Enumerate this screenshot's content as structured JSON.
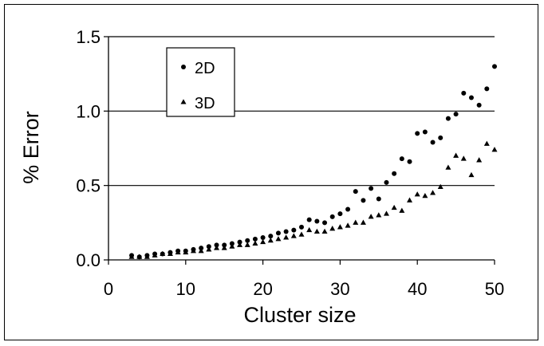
{
  "chart_data": {
    "type": "scatter",
    "title": "",
    "xlabel": "Cluster size",
    "ylabel": "% Error",
    "xlim": [
      0,
      50
    ],
    "ylim": [
      0,
      1.5
    ],
    "x_ticks": [
      "0",
      "10",
      "20",
      "30",
      "40",
      "50"
    ],
    "y_ticks": [
      "0.0",
      "0.5",
      "1.0",
      "1.5"
    ],
    "grid": "horizontal",
    "legend_position": "top-left",
    "series": [
      {
        "name": "2D",
        "marker": "circle",
        "color": "#000000",
        "points": [
          [
            3,
            0.03
          ],
          [
            4,
            0.02
          ],
          [
            5,
            0.03
          ],
          [
            6,
            0.04
          ],
          [
            7,
            0.04
          ],
          [
            8,
            0.05
          ],
          [
            9,
            0.06
          ],
          [
            10,
            0.06
          ],
          [
            11,
            0.07
          ],
          [
            12,
            0.08
          ],
          [
            13,
            0.09
          ],
          [
            14,
            0.1
          ],
          [
            15,
            0.1
          ],
          [
            16,
            0.11
          ],
          [
            17,
            0.12
          ],
          [
            18,
            0.13
          ],
          [
            19,
            0.14
          ],
          [
            20,
            0.15
          ],
          [
            21,
            0.16
          ],
          [
            22,
            0.18
          ],
          [
            23,
            0.19
          ],
          [
            24,
            0.2
          ],
          [
            25,
            0.22
          ],
          [
            26,
            0.27
          ],
          [
            27,
            0.26
          ],
          [
            28,
            0.25
          ],
          [
            29,
            0.29
          ],
          [
            30,
            0.31
          ],
          [
            31,
            0.34
          ],
          [
            32,
            0.46
          ],
          [
            33,
            0.4
          ],
          [
            34,
            0.48
          ],
          [
            35,
            0.41
          ],
          [
            36,
            0.52
          ],
          [
            37,
            0.58
          ],
          [
            38,
            0.68
          ],
          [
            39,
            0.66
          ],
          [
            40,
            0.85
          ],
          [
            41,
            0.86
          ],
          [
            42,
            0.79
          ],
          [
            43,
            0.82
          ],
          [
            44,
            0.95
          ],
          [
            45,
            0.98
          ],
          [
            46,
            1.12
          ],
          [
            47,
            1.09
          ],
          [
            48,
            1.04
          ],
          [
            49,
            1.15
          ],
          [
            50,
            1.3
          ]
        ]
      },
      {
        "name": "3D",
        "marker": "triangle",
        "color": "#000000",
        "points": [
          [
            3,
            0.02
          ],
          [
            4,
            0.02
          ],
          [
            5,
            0.02
          ],
          [
            6,
            0.03
          ],
          [
            7,
            0.04
          ],
          [
            8,
            0.04
          ],
          [
            9,
            0.05
          ],
          [
            10,
            0.05
          ],
          [
            11,
            0.06
          ],
          [
            12,
            0.06
          ],
          [
            13,
            0.07
          ],
          [
            14,
            0.08
          ],
          [
            15,
            0.08
          ],
          [
            16,
            0.09
          ],
          [
            17,
            0.1
          ],
          [
            18,
            0.1
          ],
          [
            19,
            0.11
          ],
          [
            20,
            0.12
          ],
          [
            21,
            0.13
          ],
          [
            22,
            0.14
          ],
          [
            23,
            0.15
          ],
          [
            24,
            0.16
          ],
          [
            25,
            0.17
          ],
          [
            26,
            0.2
          ],
          [
            27,
            0.19
          ],
          [
            28,
            0.19
          ],
          [
            29,
            0.21
          ],
          [
            30,
            0.22
          ],
          [
            31,
            0.23
          ],
          [
            32,
            0.25
          ],
          [
            33,
            0.25
          ],
          [
            34,
            0.29
          ],
          [
            35,
            0.3
          ],
          [
            36,
            0.31
          ],
          [
            37,
            0.35
          ],
          [
            38,
            0.33
          ],
          [
            39,
            0.4
          ],
          [
            40,
            0.44
          ],
          [
            41,
            0.43
          ],
          [
            42,
            0.45
          ],
          [
            43,
            0.49
          ],
          [
            44,
            0.62
          ],
          [
            45,
            0.7
          ],
          [
            46,
            0.68
          ],
          [
            47,
            0.57
          ],
          [
            48,
            0.67
          ],
          [
            49,
            0.78
          ],
          [
            50,
            0.74
          ]
        ]
      }
    ]
  }
}
